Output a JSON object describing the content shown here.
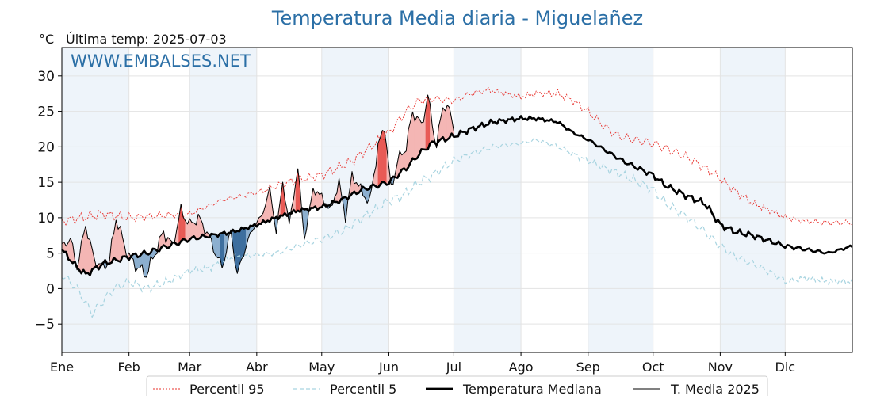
{
  "chart_data": {
    "type": "line",
    "title": "Temperatura Media diaria - Miguelañez",
    "unit": "°C",
    "last_temp": "Última temp: 2025-07-03",
    "watermark": "WWW.EMBALSES.NET",
    "ylim": [
      -9,
      34
    ],
    "yticks": [
      -5,
      0,
      5,
      10,
      15,
      20,
      25,
      30
    ],
    "ytick_labels": [
      "−5",
      "0",
      "5",
      "10",
      "15",
      "20",
      "25",
      "30"
    ],
    "xlim": [
      1,
      366
    ],
    "months": [
      "Ene",
      "Feb",
      "Mar",
      "Abr",
      "May",
      "Jun",
      "Jul",
      "Ago",
      "Sep",
      "Oct",
      "Nov",
      "Dic"
    ],
    "month_start_days": [
      1,
      32,
      60,
      91,
      121,
      152,
      182,
      213,
      244,
      274,
      305,
      335
    ],
    "shaded_months": [
      0,
      2,
      4,
      6,
      8,
      10
    ],
    "grid": true,
    "legend_position": "bottom",
    "colors": {
      "p95": "#e8302b",
      "p5": "#a8d4e0",
      "median": "#000000",
      "year": "#000000",
      "above_fill": "#f4b6b4",
      "above_fill_strong": "#e85a55",
      "below_fill": "#8cafcf",
      "below_fill_strong": "#3d6e9e",
      "band": "#eef4fa",
      "title": "#2b6fa6"
    },
    "series": [
      {
        "name": "Percentil 95",
        "style": "dotted-red",
        "anchors_x": [
          1,
          10,
          20,
          32,
          45,
          60,
          75,
          91,
          105,
          121,
          135,
          152,
          160,
          166,
          172,
          182,
          190,
          198,
          206,
          213,
          220,
          230,
          237,
          244,
          251,
          258,
          265,
          274,
          282,
          290,
          298,
          305,
          313,
          320,
          328,
          335,
          345,
          355,
          366
        ],
        "anchors_y": [
          9.5,
          10,
          10.5,
          10,
          10.3,
          10.5,
          12.5,
          13.5,
          15,
          16,
          18,
          22,
          25,
          26.5,
          26.8,
          26.5,
          27.5,
          28,
          27.5,
          27,
          27.5,
          27.5,
          26.5,
          25,
          23,
          21.5,
          21,
          20.5,
          19.5,
          18.5,
          17,
          15.5,
          13.5,
          12,
          11,
          10,
          9.5,
          9.3,
          9.3
        ]
      },
      {
        "name": "Percentil 5",
        "style": "dashed-lightblue",
        "anchors_x": [
          1,
          8,
          15,
          25,
          32,
          40,
          50,
          60,
          70,
          80,
          91,
          100,
          110,
          121,
          130,
          140,
          152,
          158,
          166,
          172,
          182,
          190,
          200,
          213,
          220,
          230,
          237,
          244,
          252,
          260,
          274,
          280,
          290,
          298,
          305,
          312,
          320,
          330,
          335,
          345,
          355,
          366
        ],
        "anchors_y": [
          2,
          0,
          -3.5,
          0,
          1,
          0,
          1,
          2.5,
          3,
          4.5,
          4.8,
          5,
          6,
          7,
          8,
          10,
          12.5,
          13,
          15,
          16,
          18,
          19,
          20,
          20.5,
          21,
          20,
          19,
          18,
          17,
          16,
          14,
          12,
          10,
          8,
          6,
          4.5,
          3.5,
          2,
          1,
          1.5,
          1,
          1
        ]
      },
      {
        "name": "Temperatura Mediana",
        "style": "thick-black",
        "anchors_x": [
          1,
          8,
          12,
          20,
          32,
          40,
          50,
          60,
          70,
          80,
          91,
          100,
          110,
          121,
          130,
          140,
          152,
          160,
          166,
          172,
          182,
          190,
          200,
          213,
          220,
          230,
          237,
          244,
          252,
          260,
          274,
          280,
          290,
          298,
          305,
          312,
          320,
          330,
          335,
          345,
          355,
          366
        ],
        "anchors_y": [
          5.5,
          3,
          2,
          3.5,
          4.5,
          5,
          6,
          7,
          7.5,
          8,
          9,
          10,
          11,
          11.5,
          12.5,
          14,
          15,
          17,
          19,
          20.5,
          21.5,
          22.5,
          23.5,
          24,
          24,
          23.5,
          22,
          21,
          19.5,
          18,
          16,
          14.5,
          13,
          12,
          9,
          8,
          7.5,
          6.5,
          6,
          5.5,
          5,
          6
        ]
      },
      {
        "name": "T. Media 2025",
        "style": "thin-black",
        "anchors_x": [
          1,
          5,
          8,
          12,
          16,
          20,
          23,
          26,
          30,
          33,
          36,
          40,
          44,
          48,
          52,
          56,
          60,
          64,
          68,
          72,
          75,
          79,
          82,
          86,
          90,
          93,
          97,
          100,
          103,
          106,
          110,
          113,
          117,
          121,
          125,
          129,
          132,
          135,
          139,
          143,
          147,
          150,
          153,
          156,
          160,
          163,
          167,
          170,
          174,
          177,
          180,
          182
        ],
        "anchors_y": [
          6,
          7,
          3,
          9,
          4,
          3,
          4,
          10,
          6,
          4,
          3,
          2,
          5,
          8,
          6,
          11,
          9,
          10,
          8,
          5,
          3,
          8,
          2,
          6,
          9,
          10,
          14,
          8,
          15,
          9,
          17,
          7,
          14,
          13,
          11,
          15,
          10,
          16,
          14,
          12,
          20,
          23,
          14,
          18,
          20,
          25,
          23,
          27,
          20,
          26,
          25,
          23
        ]
      }
    ],
    "legend": [
      "Percentil 95",
      "Percentil 5",
      "Temperatura Mediana",
      "T. Media 2025"
    ]
  }
}
